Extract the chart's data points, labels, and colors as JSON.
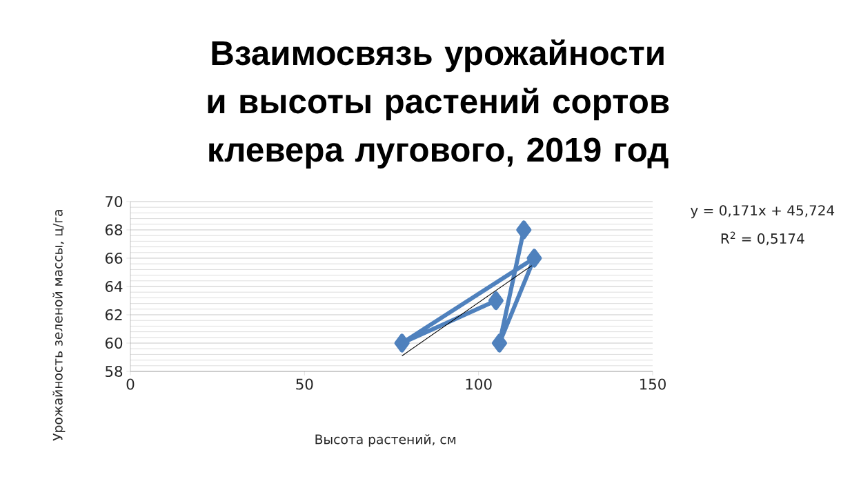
{
  "chart_data": {
    "type": "line",
    "title": "Взаимосвязь урожайности и высоты растений сортов клевера лугового, 2019 год",
    "xlabel": "Высота растений, см",
    "ylabel": "Урожайность зеленой массы, ц/га",
    "xlim": [
      0,
      150
    ],
    "xticks": [
      0,
      50,
      100,
      150
    ],
    "ylim": [
      58,
      70
    ],
    "yticks": [
      58,
      60,
      62,
      64,
      66,
      68,
      70
    ],
    "grid": "y",
    "marker": "diamond",
    "line_style": "solid",
    "series": [
      {
        "color": "#4f81bd",
        "x": [
          105,
          78,
          116,
          106,
          113
        ],
        "values": [
          63,
          60,
          66,
          60,
          68
        ]
      },
      {
        "color": "#000000",
        "marker": "none",
        "x": [
          78,
          116
        ],
        "values": [
          59.1,
          65.6
        ]
      }
    ],
    "annotations": [
      "y = 0,171x + 45,724",
      "R$^{2}$ = 0,5174"
    ]
  }
}
